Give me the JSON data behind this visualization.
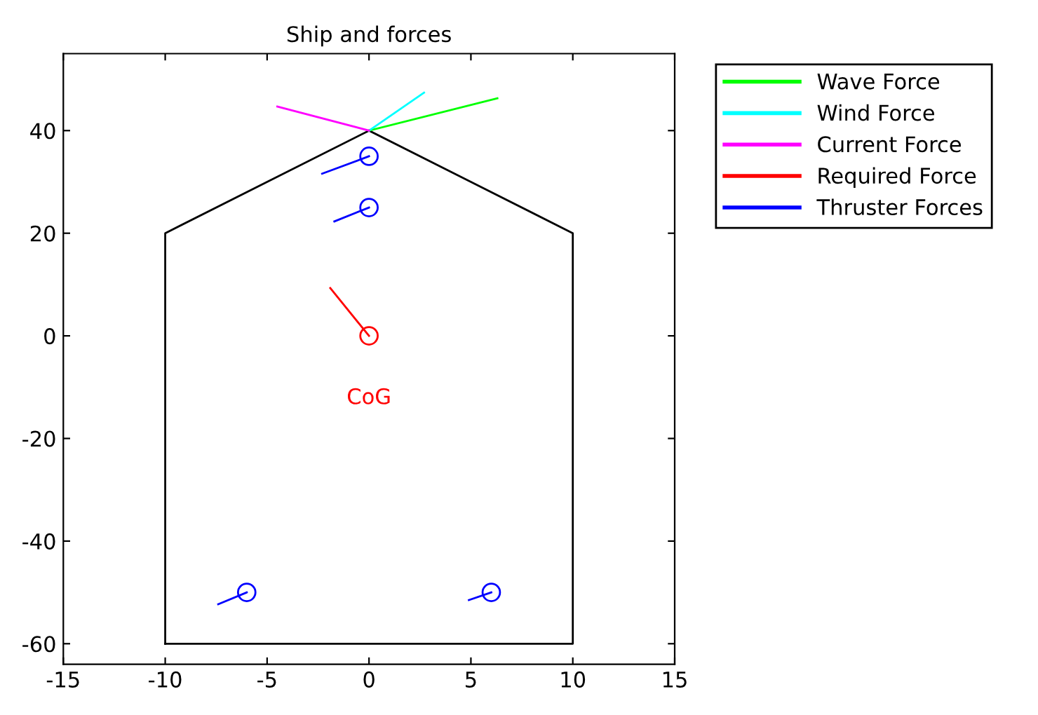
{
  "chart_data": {
    "type": "line",
    "title": "Ship and forces",
    "series": [
      {
        "color": "#000000",
        "x": [
          0,
          10,
          10,
          -10
        ],
        "values": [
          40,
          20,
          -60,
          -60
        ]
      },
      {
        "color": "#000000",
        "x": [
          -10,
          -10,
          0
        ],
        "values": [
          -60,
          20,
          40
        ]
      },
      {
        "name": "Wave Force",
        "color": "#00ff00",
        "x": [
          0,
          6.3
        ],
        "values": [
          40,
          46.3
        ]
      },
      {
        "name": "Wind Force",
        "color": "#00ffff",
        "x": [
          0,
          2.7
        ],
        "values": [
          40,
          47.4
        ]
      },
      {
        "name": "Current Force",
        "color": "#ff00ff",
        "x": [
          0,
          -4.5
        ],
        "values": [
          40,
          44.7
        ]
      },
      {
        "name": "Required Force",
        "color": "#ff0000",
        "x": [
          0,
          -1.9
        ],
        "values": [
          0,
          9.3
        ]
      },
      {
        "name": "Thruster Forces",
        "color": "#0000ff",
        "x": [
          0,
          -2.3,
          null,
          0,
          -1.7,
          null,
          -6,
          -7.4,
          null,
          6,
          4.9
        ],
        "values": [
          35,
          31.6,
          null,
          25,
          22.3,
          null,
          -50,
          -52.3,
          null,
          -50,
          -51.5
        ]
      },
      {
        "type": "scatter",
        "marker": "circle",
        "color": "#0000ff",
        "x": [
          0,
          0,
          -6,
          6
        ],
        "values": [
          35,
          25,
          -50,
          -50
        ]
      },
      {
        "type": "scatter",
        "marker": "circle",
        "color": "#ff0000",
        "x": [
          0
        ],
        "values": [
          0
        ]
      }
    ],
    "annotations": [
      {
        "text": "CoG",
        "x": 0,
        "y": 0
      }
    ],
    "xlim": [
      -15,
      15
    ],
    "xticks": [
      -15,
      -10,
      -5,
      0,
      5,
      10,
      15
    ],
    "ylim": [
      -64,
      55
    ],
    "yticks": [
      -60,
      -40,
      -20,
      0,
      20,
      40
    ],
    "legend": "right",
    "grid": false
  }
}
